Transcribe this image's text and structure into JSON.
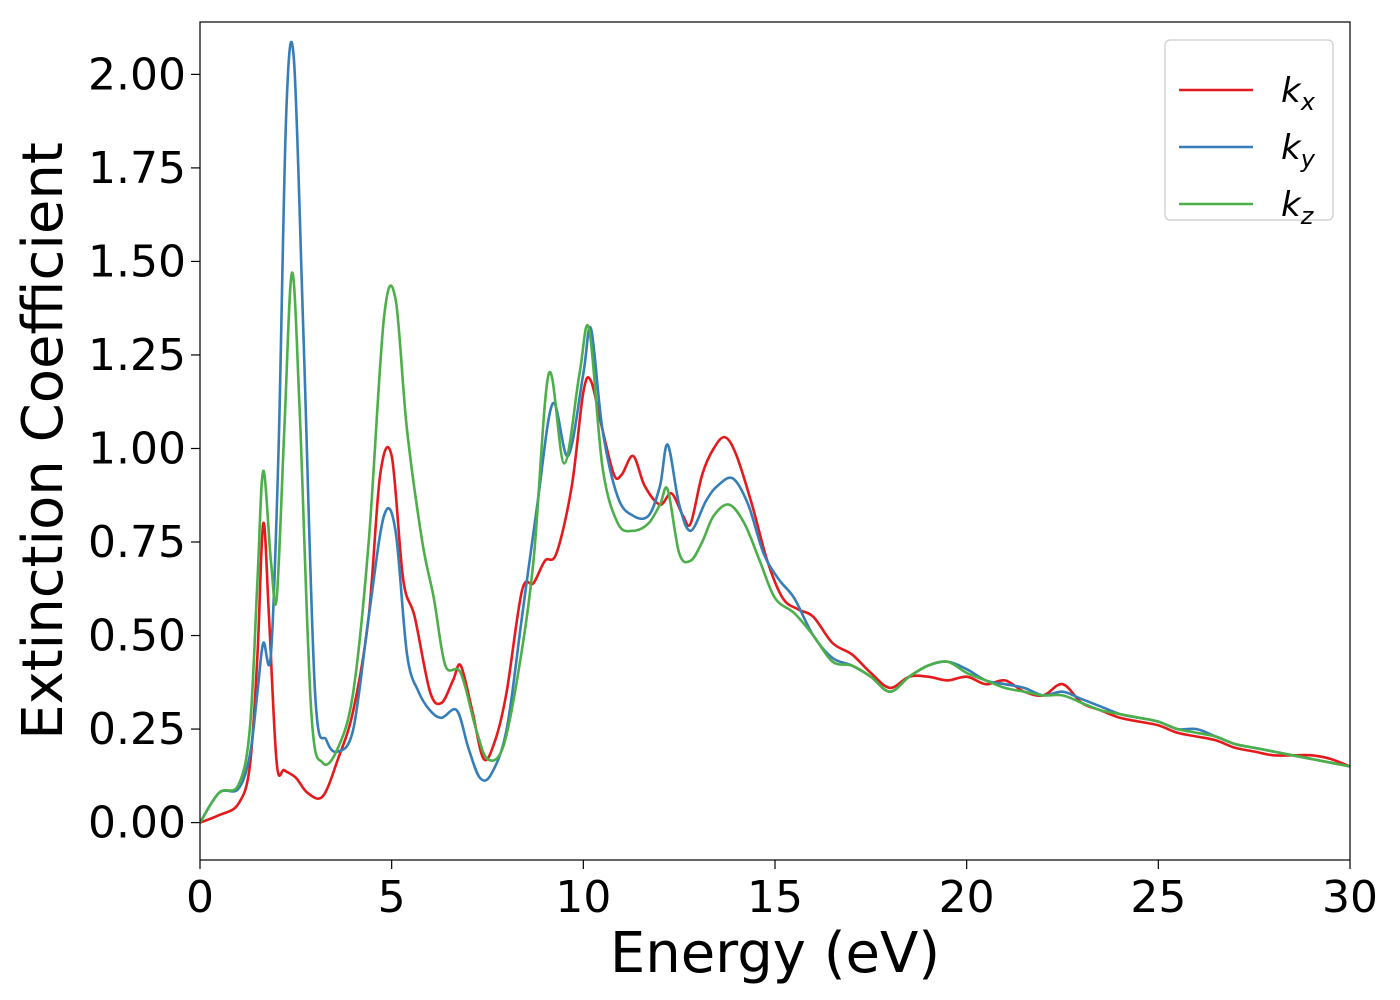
{
  "chart_data": {
    "type": "line",
    "title": "",
    "xlabel": "Energy (eV)",
    "ylabel": "Extinction Coefficient",
    "xlim": [
      0,
      30
    ],
    "ylim": [
      -0.1,
      2.14
    ],
    "xticks": [
      0,
      5,
      10,
      15,
      20,
      25,
      30
    ],
    "xtick_labels": [
      "0",
      "5",
      "10",
      "15",
      "20",
      "25",
      "30"
    ],
    "yticks": [
      0,
      0.25,
      0.5,
      0.75,
      1.0,
      1.25,
      1.5,
      1.75,
      2.0
    ],
    "ytick_labels": [
      "0.00",
      "0.25",
      "0.50",
      "0.75",
      "1.00",
      "1.25",
      "1.50",
      "1.75",
      "2.00"
    ],
    "grid": false,
    "legend_position": "top-right",
    "series": [
      {
        "name": "k_x",
        "label_base": "k",
        "label_sub": "x",
        "color": "#e41a1c",
        "x": [
          0,
          0.5,
          1.0,
          1.3,
          1.5,
          1.65,
          1.8,
          2.0,
          2.2,
          2.5,
          2.8,
          3.2,
          3.6,
          4.0,
          4.4,
          4.7,
          5.0,
          5.3,
          5.6,
          6.0,
          6.3,
          6.6,
          6.8,
          7.1,
          7.4,
          7.7,
          8.0,
          8.4,
          8.7,
          9.0,
          9.3,
          9.7,
          10.0,
          10.2,
          10.5,
          10.8,
          11.0,
          11.3,
          11.6,
          12.0,
          12.3,
          12.6,
          12.8,
          13.1,
          13.4,
          13.7,
          14.0,
          14.4,
          14.8,
          15.2,
          15.6,
          16.0,
          16.5,
          17.0,
          17.5,
          18.0,
          18.5,
          19.0,
          19.5,
          20.0,
          20.5,
          21.0,
          21.5,
          22.0,
          22.5,
          23.0,
          23.5,
          24.0,
          24.5,
          25.0,
          25.5,
          26.0,
          26.5,
          27.0,
          27.5,
          28.0,
          28.5,
          29.0,
          29.5,
          30.0
        ],
        "values": [
          0.0,
          0.02,
          0.05,
          0.15,
          0.45,
          0.8,
          0.55,
          0.16,
          0.14,
          0.12,
          0.08,
          0.07,
          0.17,
          0.3,
          0.55,
          0.93,
          0.98,
          0.65,
          0.55,
          0.35,
          0.32,
          0.38,
          0.42,
          0.3,
          0.17,
          0.22,
          0.35,
          0.62,
          0.64,
          0.7,
          0.72,
          0.9,
          1.15,
          1.18,
          1.05,
          0.93,
          0.93,
          0.98,
          0.9,
          0.85,
          0.88,
          0.82,
          0.8,
          0.93,
          1.0,
          1.03,
          0.98,
          0.85,
          0.7,
          0.6,
          0.57,
          0.55,
          0.48,
          0.45,
          0.4,
          0.36,
          0.39,
          0.39,
          0.38,
          0.39,
          0.37,
          0.38,
          0.35,
          0.34,
          0.37,
          0.32,
          0.3,
          0.28,
          0.27,
          0.26,
          0.24,
          0.23,
          0.22,
          0.2,
          0.19,
          0.18,
          0.18,
          0.18,
          0.17,
          0.15
        ]
      },
      {
        "name": "k_y",
        "label_base": "k",
        "label_sub": "y",
        "color": "#377eb8",
        "x": [
          0,
          0.5,
          1.0,
          1.3,
          1.5,
          1.65,
          1.85,
          2.05,
          2.25,
          2.45,
          2.7,
          3.0,
          3.3,
          3.6,
          4.0,
          4.4,
          4.8,
          5.1,
          5.4,
          5.7,
          6.0,
          6.3,
          6.7,
          7.0,
          7.3,
          7.6,
          8.0,
          8.4,
          8.8,
          9.2,
          9.6,
          10.0,
          10.2,
          10.5,
          10.9,
          11.3,
          11.7,
          12.0,
          12.2,
          12.5,
          12.8,
          13.2,
          13.5,
          13.9,
          14.3,
          14.7,
          15.1,
          15.5,
          16.0,
          16.5,
          17.0,
          17.5,
          18.0,
          18.5,
          19.0,
          19.5,
          20.0,
          20.5,
          21.0,
          21.5,
          22.0,
          22.5,
          23.0,
          23.5,
          24.0,
          24.5,
          25.0,
          25.5,
          26.0,
          26.5,
          27.0,
          27.5,
          28.0,
          28.5,
          29.0,
          29.5,
          30.0
        ],
        "values": [
          0.0,
          0.08,
          0.09,
          0.18,
          0.35,
          0.48,
          0.45,
          1.0,
          1.9,
          2.04,
          1.3,
          0.35,
          0.22,
          0.19,
          0.25,
          0.55,
          0.82,
          0.78,
          0.45,
          0.35,
          0.3,
          0.28,
          0.3,
          0.2,
          0.12,
          0.13,
          0.25,
          0.55,
          0.85,
          1.12,
          0.98,
          1.2,
          1.32,
          1.05,
          0.87,
          0.82,
          0.82,
          0.9,
          1.01,
          0.85,
          0.78,
          0.86,
          0.9,
          0.92,
          0.85,
          0.72,
          0.65,
          0.6,
          0.5,
          0.44,
          0.42,
          0.39,
          0.35,
          0.39,
          0.42,
          0.43,
          0.41,
          0.38,
          0.37,
          0.36,
          0.34,
          0.35,
          0.33,
          0.31,
          0.29,
          0.28,
          0.27,
          0.25,
          0.25,
          0.23,
          0.21,
          0.2,
          0.19,
          0.18,
          0.17,
          0.16,
          0.15
        ]
      },
      {
        "name": "k_z",
        "label_base": "k",
        "label_sub": "z",
        "color": "#4daf4a",
        "x": [
          0,
          0.5,
          1.0,
          1.3,
          1.5,
          1.65,
          1.85,
          2.0,
          2.2,
          2.4,
          2.6,
          2.9,
          3.2,
          3.6,
          4.0,
          4.4,
          4.8,
          5.1,
          5.4,
          5.8,
          6.1,
          6.4,
          6.8,
          7.2,
          7.5,
          7.9,
          8.3,
          8.7,
          9.1,
          9.5,
          9.9,
          10.15,
          10.5,
          10.9,
          11.3,
          11.7,
          12.0,
          12.2,
          12.5,
          12.8,
          13.1,
          13.4,
          13.8,
          14.2,
          14.6,
          15.0,
          15.5,
          16.0,
          16.5,
          17.0,
          17.5,
          18.0,
          18.5,
          19.0,
          19.5,
          20.0,
          20.5,
          21.0,
          21.5,
          22.0,
          22.5,
          23.0,
          23.5,
          24.0,
          24.5,
          25.0,
          25.5,
          26.0,
          26.5,
          27.0,
          27.5,
          28.0,
          28.5,
          29.0,
          29.5,
          30.0
        ],
        "values": [
          0.0,
          0.08,
          0.1,
          0.25,
          0.65,
          0.94,
          0.7,
          0.6,
          1.05,
          1.47,
          1.1,
          0.3,
          0.16,
          0.2,
          0.35,
          0.75,
          1.35,
          1.4,
          1.05,
          0.75,
          0.6,
          0.42,
          0.4,
          0.25,
          0.17,
          0.2,
          0.4,
          0.7,
          1.2,
          0.96,
          1.2,
          1.32,
          0.95,
          0.8,
          0.78,
          0.8,
          0.85,
          0.89,
          0.72,
          0.7,
          0.75,
          0.82,
          0.85,
          0.8,
          0.7,
          0.6,
          0.56,
          0.5,
          0.43,
          0.42,
          0.39,
          0.35,
          0.39,
          0.42,
          0.43,
          0.4,
          0.38,
          0.36,
          0.35,
          0.34,
          0.34,
          0.32,
          0.3,
          0.29,
          0.28,
          0.27,
          0.25,
          0.24,
          0.23,
          0.21,
          0.2,
          0.19,
          0.18,
          0.17,
          0.16,
          0.15
        ]
      }
    ]
  }
}
